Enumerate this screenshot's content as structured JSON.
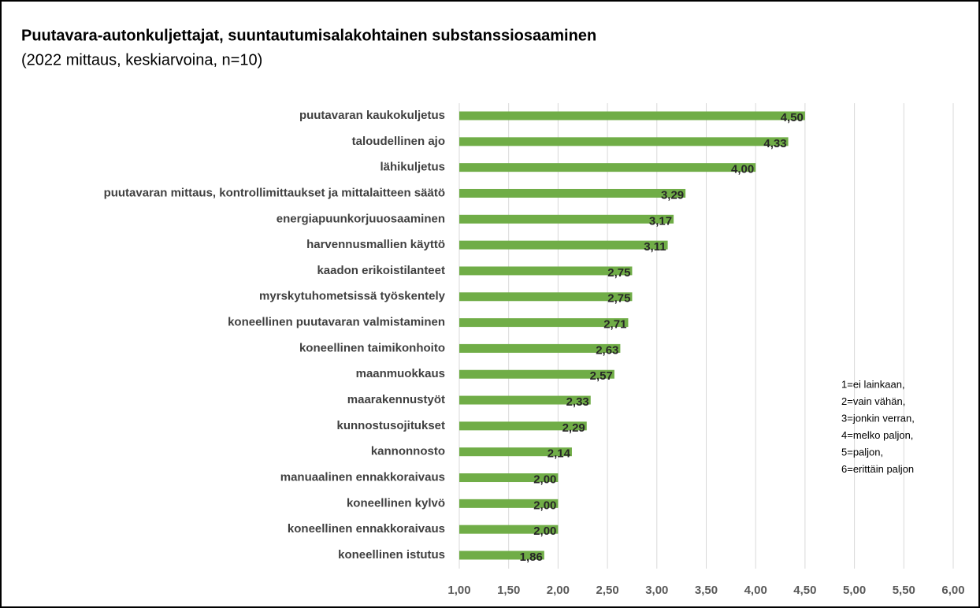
{
  "chart_data": {
    "type": "bar",
    "orientation": "horizontal",
    "title": "Puutavara-autonkuljettajat, suuntautumisalakohtainen substanssiosaaminen",
    "subtitle": "(2022 mittaus, keskiarvoina, n=10)",
    "categories": [
      "puutavaran kaukokuljetus",
      "taloudellinen ajo",
      "lähikuljetus",
      "puutavaran mittaus, kontrollimittaukset ja mittalaitteen säätö",
      "energiapuunkorjuuosaaminen",
      "harvennusmallien käyttö",
      "kaadon erikoistilanteet",
      "myrskytuhometsissä työskentely",
      "koneellinen puutavaran valmistaminen",
      "koneellinen taimikonhoito",
      "maanmuokkaus",
      "maarakennustyöt",
      "kunnostusojitukset",
      "kannonnosto",
      "manuaalinen ennakkoraivaus",
      "koneellinen kylvö",
      "koneellinen ennakkoraivaus",
      "koneellinen istutus"
    ],
    "values": [
      4.5,
      4.33,
      4.0,
      3.29,
      3.17,
      3.11,
      2.75,
      2.75,
      2.71,
      2.63,
      2.57,
      2.33,
      2.29,
      2.14,
      2.0,
      2.0,
      2.0,
      1.86
    ],
    "value_labels": [
      "4,50",
      "4,33",
      "4,00",
      "3,29",
      "3,17",
      "3,11",
      "2,75",
      "2,75",
      "2,71",
      "2,63",
      "2,57",
      "2,33",
      "2,29",
      "2,14",
      "2,00",
      "2,00",
      "2,00",
      "1,86"
    ],
    "color": "#70ad47",
    "xlim": [
      1,
      6
    ],
    "xticks": [
      {
        "value": 1,
        "label": "1,00"
      },
      {
        "value": 1.5,
        "label": "1,50"
      },
      {
        "value": 2,
        "label": "2,00"
      },
      {
        "value": 2.5,
        "label": "2,50"
      },
      {
        "value": 3,
        "label": "3,00"
      },
      {
        "value": 3.5,
        "label": "3,50"
      },
      {
        "value": 4,
        "label": "4,00"
      },
      {
        "value": 4.5,
        "label": "4,50"
      },
      {
        "value": 5,
        "label": "5,00"
      },
      {
        "value": 5.5,
        "label": "5,50"
      },
      {
        "value": 6,
        "label": "6,00"
      }
    ],
    "grid": true,
    "annotation": [
      "1=ei lainkaan,",
      "2=vain vähän,",
      "3=jonkin verran,",
      "4=melko paljon,",
      "5=paljon,",
      "6=erittäin paljon"
    ]
  }
}
